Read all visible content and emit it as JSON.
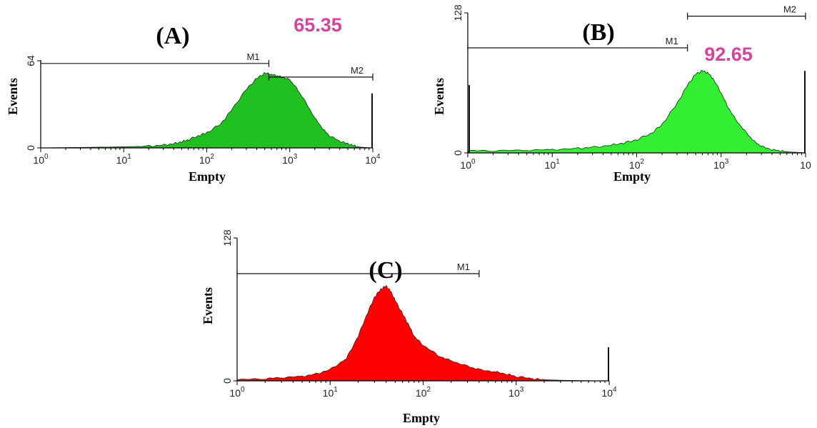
{
  "chart_data": [
    {
      "id": "A",
      "type": "area",
      "panel_label": "(A)",
      "value_label": "65.35",
      "xlabel": "Empty",
      "ylabel": "Events",
      "xscale": "log",
      "xlim": [
        1,
        10000
      ],
      "ylim": [
        0,
        64
      ],
      "x_ticks": [
        1,
        10,
        100,
        1000,
        10000
      ],
      "x_tick_labels": [
        {
          "base": "10",
          "exp": "0"
        },
        {
          "base": "10",
          "exp": "1"
        },
        {
          "base": "10",
          "exp": "2"
        },
        {
          "base": "10",
          "exp": "3"
        },
        {
          "base": "10",
          "exp": "4"
        }
      ],
      "y_ticks": [
        0,
        64
      ],
      "y_tick_labels": [
        "0",
        "64"
      ],
      "fill_color": "#21c021",
      "series": [
        {
          "x": [
            1,
            2,
            5,
            10,
            20,
            30,
            40,
            50,
            60,
            80,
            100,
            150,
            200,
            300,
            400,
            500,
            600,
            700,
            800,
            1000,
            1200,
            1500,
            2000,
            2500,
            3000,
            4000,
            5000,
            6000,
            7000,
            8000,
            10000
          ],
          "y": [
            0,
            0.2,
            0.5,
            0.8,
            1.2,
            2,
            3,
            4.5,
            6,
            9,
            11,
            18,
            28,
            43,
            51,
            55,
            54,
            53,
            52,
            50,
            44,
            35,
            22,
            14,
            9,
            5,
            3,
            1.5,
            0.6,
            0.3,
            0
          ],
          "end_spike": 40
        }
      ],
      "markers": [
        {
          "name": "M1",
          "from": 1,
          "to": 560,
          "y": 62
        },
        {
          "name": "M2",
          "from": 560,
          "to": 10000,
          "y": 52
        }
      ]
    },
    {
      "id": "B",
      "type": "area",
      "panel_label": "(B)",
      "value_label": "92.65",
      "xlabel": "Empty",
      "ylabel": "Events",
      "xscale": "log",
      "xlim": [
        1,
        10000
      ],
      "ylim": [
        0,
        128
      ],
      "x_ticks": [
        1,
        10,
        100,
        1000,
        10000
      ],
      "x_tick_labels": [
        {
          "base": "10",
          "exp": "0"
        },
        {
          "base": "10",
          "exp": "1"
        },
        {
          "base": "10",
          "exp": "2"
        },
        {
          "base": "10",
          "exp": "3"
        },
        {
          "base": "10",
          "exp": ""
        }
      ],
      "y_ticks": [
        0,
        128
      ],
      "y_tick_labels": [
        "0",
        "128"
      ],
      "fill_color": "#33ee33",
      "series": [
        {
          "x": [
            1,
            2,
            5,
            10,
            20,
            30,
            50,
            70,
            100,
            150,
            200,
            300,
            400,
            500,
            600,
            700,
            800,
            1000,
            1200,
            1500,
            2000,
            2500,
            3000,
            4000,
            5000,
            6000,
            8000,
            10000
          ],
          "y": [
            2,
            2,
            2.5,
            3,
            4,
            5,
            7,
            9,
            12,
            18,
            26,
            45,
            62,
            72,
            75,
            73,
            68,
            55,
            42,
            30,
            18,
            10,
            6,
            3,
            2,
            1,
            0.5,
            0
          ],
          "start_spike": 62,
          "end_spike": 75
        }
      ],
      "markers": [
        {
          "name": "M1",
          "from": 1,
          "to": 400,
          "y": 96
        },
        {
          "name": "M2",
          "from": 400,
          "to": 10000,
          "y": 125
        }
      ]
    },
    {
      "id": "C",
      "type": "area",
      "panel_label": "(C)",
      "value_label": "",
      "xlabel": "Empty",
      "ylabel": "Events",
      "xscale": "log",
      "xlim": [
        1,
        10000
      ],
      "ylim": [
        0,
        128
      ],
      "x_ticks": [
        1,
        10,
        100,
        1000,
        10000
      ],
      "x_tick_labels": [
        {
          "base": "10",
          "exp": "0"
        },
        {
          "base": "10",
          "exp": "1"
        },
        {
          "base": "10",
          "exp": "2"
        },
        {
          "base": "10",
          "exp": "3"
        },
        {
          "base": "10",
          "exp": "4"
        }
      ],
      "y_ticks": [
        0,
        128
      ],
      "y_tick_labels": [
        "0",
        "128"
      ],
      "fill_color": "#ff0000",
      "series": [
        {
          "x": [
            1,
            2,
            3,
            5,
            7,
            10,
            15,
            20,
            25,
            30,
            35,
            40,
            45,
            50,
            60,
            70,
            80,
            100,
            150,
            200,
            300,
            400,
            600,
            800,
            1000,
            1500,
            2000,
            3000,
            4000,
            6000,
            10000
          ],
          "y": [
            1,
            2,
            3,
            4,
            6,
            10,
            20,
            40,
            60,
            75,
            82,
            85,
            80,
            72,
            60,
            50,
            40,
            32,
            22,
            18,
            13,
            10,
            8,
            6,
            4,
            2,
            1,
            0.5,
            0.3,
            0.1,
            0
          ],
          "end_spike": 30
        }
      ],
      "markers": [
        {
          "name": "M1",
          "from": 1,
          "to": 400,
          "y": 96
        }
      ]
    }
  ]
}
